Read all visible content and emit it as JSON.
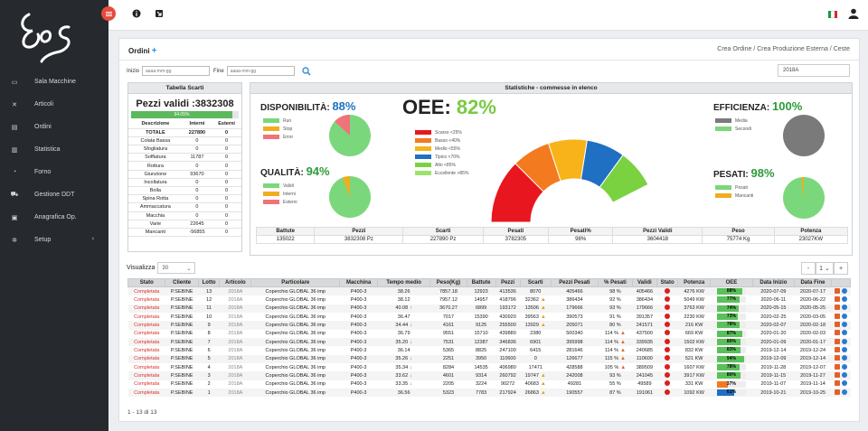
{
  "sidebar": {
    "logo_text": "Eos",
    "items": [
      {
        "label": "Sala Macchine",
        "icon": "monitor-icon"
      },
      {
        "label": "Articoli",
        "icon": "tools-icon"
      },
      {
        "label": "Ordini",
        "icon": "clipboard-icon"
      },
      {
        "label": "Statistica",
        "icon": "chart-icon"
      },
      {
        "label": "Forno",
        "icon": "fire-icon"
      },
      {
        "label": "Gestione DDT",
        "icon": "truck-icon"
      },
      {
        "label": "Anagrafica Op.",
        "icon": "id-card-icon"
      },
      {
        "label": "Setup",
        "icon": "gear-icon"
      }
    ]
  },
  "header": {
    "menu_icon": "hamburger-icon",
    "info_icon": "info-icon",
    "logout_icon": "exit-icon",
    "flag": "italy-flag-icon",
    "user_icon": "user-icon"
  },
  "panel": {
    "title": "Ordini",
    "breadcrumb": [
      "Crea Ordine",
      "Crea Produzione Esterna",
      "Ceste"
    ],
    "filters": {
      "inizio_label": "Inizio",
      "fine_label": "Fine",
      "date_placeholder": "aaaa-mm-gg",
      "year_value": "2018A"
    }
  },
  "scarti": {
    "title": "Tabella Scarti",
    "pezzi_validi": "Pezzi validi :3832308",
    "progress_label": "94.05%",
    "progress": 94.05,
    "headers": [
      "Descrizione",
      "Interni",
      "Esterni"
    ],
    "rows": [
      [
        "TOTALE",
        "227890",
        "0"
      ],
      [
        "Colata Bassa",
        "0",
        "0"
      ],
      [
        "Sfogliatura",
        "0",
        "0"
      ],
      [
        "Soffiatura",
        "11787",
        "0"
      ],
      [
        "Rottura",
        "0",
        "0"
      ],
      [
        "Giunzione",
        "93670",
        "0"
      ],
      [
        "Incollatura",
        "0",
        "0"
      ],
      [
        "Bolla",
        "0",
        "0"
      ],
      [
        "Spina Rotta",
        "0",
        "0"
      ],
      [
        "Ammaccatura",
        "0",
        "0"
      ],
      [
        "Macchia",
        "0",
        "0"
      ],
      [
        "Varie",
        "22645",
        "0"
      ],
      [
        "Mancanti",
        "-56855",
        "0"
      ]
    ]
  },
  "stats": {
    "title": "Statistiche - commesse in elenco",
    "disponibilita": {
      "label": "DISPONIBILITÀ:",
      "value": "88%",
      "legend": [
        "Run",
        "Stop",
        "Error"
      ]
    },
    "qualita": {
      "label": "QUALITÀ:",
      "value": "94%",
      "legend": [
        "Validi",
        "Interni",
        "Esterni"
      ]
    },
    "oee": {
      "label": "OEE:",
      "value": "82%",
      "legend": [
        "Scarso <25%",
        "Basso <40%",
        "Medio <55%",
        "Tipico <70%",
        "Alto <85%",
        "Eccellente >85%"
      ]
    },
    "efficienza": {
      "label": "EFFICIENZA:",
      "value": "100%",
      "legend": [
        "Media",
        "Secondi"
      ]
    },
    "pesati": {
      "label": "PESATI:",
      "value": "98%",
      "legend": [
        "Pesati",
        "Mancanti"
      ]
    },
    "summary_headers": [
      "Battute",
      "Pezzi",
      "Scarti",
      "Pesati",
      "Pesati%",
      "Pezzi Validi",
      "Peso",
      "Potenza"
    ],
    "summary_values": [
      "135022",
      "3832308 Pz",
      "227890 Pz",
      "3782305",
      "98%",
      "3604418",
      "75774 Kg",
      "23027KW"
    ]
  },
  "colors": {
    "green": "#7bd77b",
    "orange": "#f0ad1e",
    "red": "#f0727a",
    "gray": "#7a7a7a",
    "scarso": "#e8161e",
    "basso": "#f37a1f",
    "medio": "#f7b319",
    "tipico": "#1f6fc2",
    "alto": "#7bd241"
  },
  "table": {
    "visualizza_label": "Visualizza",
    "page_size": "30",
    "page": "1",
    "footer": "1 - 13 di 13",
    "headers": [
      "Stato",
      "Cliente",
      "Lotto",
      "Articolo",
      "Particolare",
      "Macchina",
      "Tempo medio",
      "Peso(Kg)",
      "Battute",
      "Pezzi",
      "Scarti",
      "Pezzi Pesati",
      "% Pesati",
      "Validi",
      "Stato",
      "Potenza",
      "OEE",
      "Data Inizio",
      "Data Fine"
    ],
    "rows": [
      {
        "stato": "Completata",
        "cliente": "P.SEBINE",
        "lotto": "13",
        "articolo": "2018A",
        "particolare": "Coperchio GLOBAL 36 imp",
        "macchina": "P400-3",
        "tempo": "38.26",
        "tarrow": "",
        "peso": "7857.18",
        "battute": "12923",
        "pezzi": "413536",
        "scarti": "8070",
        "swarn": false,
        "pesati": "405466",
        "ppct": "98 %",
        "pwarn": false,
        "validi": "405466",
        "potenza": "4276 KW",
        "oee": "88%",
        "oee_value": 88,
        "oee_color": "#5ac15a",
        "inizio": "2020-07-09",
        "fine": "2020-07-17"
      },
      {
        "stato": "Completata",
        "cliente": "P.SEBINE",
        "lotto": "12",
        "articolo": "2018A",
        "particolare": "Coperchio GLOBAL 36 imp",
        "macchina": "P400-3",
        "tempo": "38.12",
        "tarrow": "",
        "peso": "7957.12",
        "battute": "14957",
        "pezzi": "418796",
        "scarti": "32362",
        "swarn": true,
        "pesati": "386434",
        "ppct": "92 %",
        "pwarn": false,
        "validi": "386434",
        "potenza": "5049 KW",
        "oee": "77%",
        "oee_value": 77,
        "oee_color": "#5ac15a",
        "inizio": "2020-06-11",
        "fine": "2020-06-22"
      },
      {
        "stato": "Completata",
        "cliente": "P.SEBINE",
        "lotto": "11",
        "articolo": "2018A",
        "particolare": "Coperchio GLOBAL 36 imp",
        "macchina": "P400-3",
        "tempo": "40.08",
        "tarrow": "up",
        "peso": "3670.27",
        "battute": "6899",
        "pezzi": "193172",
        "scarti": "13506",
        "swarn": true,
        "pesati": "179666",
        "ppct": "93 %",
        "pwarn": false,
        "validi": "179666",
        "potenza": "3763 KW",
        "oee": "74%",
        "oee_value": 74,
        "oee_color": "#5ac15a",
        "inizio": "2020-05-15",
        "fine": "2020-05-25"
      },
      {
        "stato": "Completata",
        "cliente": "P.SEBINE",
        "lotto": "10",
        "articolo": "2018A",
        "particolare": "Coperchio GLOBAL 36 imp",
        "macchina": "P400-3",
        "tempo": "36.47",
        "tarrow": "",
        "peso": "7017",
        "battute": "15390",
        "pezzi": "430920",
        "scarti": "39563",
        "swarn": true,
        "pesati": "390573",
        "ppct": "91 %",
        "pwarn": false,
        "validi": "391357",
        "potenza": "2230 KW",
        "oee": "73%",
        "oee_value": 73,
        "oee_color": "#5ac15a",
        "inizio": "2020-02-25",
        "fine": "2020-03-05"
      },
      {
        "stato": "Completata",
        "cliente": "P.SEBINE",
        "lotto": "9",
        "articolo": "2018A",
        "particolare": "Coperchio GLOBAL 36 imp",
        "macchina": "P400-3",
        "tempo": "34.44",
        "tarrow": "down",
        "peso": "4161",
        "battute": "9125",
        "pezzi": "255500",
        "scarti": "13929",
        "swarn": true,
        "pesati": "205071",
        "ppct": "80 %",
        "pwarn": false,
        "validi": "241571",
        "potenza": "216 KW",
        "oee": "78%",
        "oee_value": 78,
        "oee_color": "#5ac15a",
        "inizio": "2020-02-07",
        "fine": "2020-02-18"
      },
      {
        "stato": "Completata",
        "cliente": "P.SEBINE",
        "lotto": "8",
        "articolo": "2018A",
        "particolare": "Coperchio GLOBAL 36 imp",
        "macchina": "P400-3",
        "tempo": "36.79",
        "tarrow": "",
        "peso": "9551",
        "battute": "15710",
        "pezzi": "439880",
        "scarti": "2380",
        "swarn": false,
        "pesati": "500340",
        "ppct": "114 %",
        "pwarn": true,
        "validi": "437500",
        "potenza": "669 KW",
        "oee": "87%",
        "oee_value": 87,
        "oee_color": "#5ac15a",
        "inizio": "2020-01-20",
        "fine": "2020-02-03"
      },
      {
        "stato": "Completata",
        "cliente": "P.SEBINE",
        "lotto": "7",
        "articolo": "2018A",
        "particolare": "Coperchio GLOBAL 36 imp",
        "macchina": "P400-3",
        "tempo": "35.20",
        "tarrow": "down",
        "peso": "7531",
        "battute": "12387",
        "pezzi": "346836",
        "scarti": "6901",
        "swarn": false,
        "pesati": "395998",
        "ppct": "114 %",
        "pwarn": true,
        "validi": "339935",
        "potenza": "1502 KW",
        "oee": "80%",
        "oee_value": 80,
        "oee_color": "#5ac15a",
        "inizio": "2020-01-09",
        "fine": "2020-01-17"
      },
      {
        "stato": "Completata",
        "cliente": "P.SEBINE",
        "lotto": "6",
        "articolo": "2018A",
        "particolare": "Coperchio GLOBAL 36 imp",
        "macchina": "P400-3",
        "tempo": "36.14",
        "tarrow": "",
        "peso": "5365",
        "battute": "8825",
        "pezzi": "247100",
        "scarti": "6415",
        "swarn": false,
        "pesati": "281646",
        "ppct": "114 %",
        "pwarn": true,
        "validi": "240685",
        "potenza": "832 KW",
        "oee": "83%",
        "oee_value": 83,
        "oee_color": "#5ac15a",
        "inizio": "2019-12-14",
        "fine": "2019-12-24"
      },
      {
        "stato": "Completata",
        "cliente": "P.SEBINE",
        "lotto": "5",
        "articolo": "2018A",
        "particolare": "Coperchio GLOBAL 36 imp",
        "macchina": "P400-3",
        "tempo": "35.26",
        "tarrow": "down",
        "peso": "2251",
        "battute": "3950",
        "pezzi": "110600",
        "scarti": "0",
        "swarn": false,
        "pesati": "126677",
        "ppct": "115 %",
        "pwarn": true,
        "validi": "110600",
        "potenza": "521 KW",
        "oee": "94%",
        "oee_value": 94,
        "oee_color": "#5ac15a",
        "inizio": "2019-12-09",
        "fine": "2019-12-14"
      },
      {
        "stato": "Completata",
        "cliente": "P.SEBINE",
        "lotto": "4",
        "articolo": "2018A",
        "particolare": "Coperchio GLOBAL 36 imp",
        "macchina": "P400-3",
        "tempo": "35.34",
        "tarrow": "down",
        "peso": "8284",
        "battute": "14535",
        "pezzi": "406980",
        "scarti": "17471",
        "swarn": false,
        "pesati": "428588",
        "ppct": "105 %",
        "pwarn": true,
        "validi": "389509",
        "potenza": "1607 KW",
        "oee": "78%",
        "oee_value": 78,
        "oee_color": "#5ac15a",
        "inizio": "2019-11-28",
        "fine": "2019-12-07"
      },
      {
        "stato": "Completata",
        "cliente": "P.SEBINE",
        "lotto": "3",
        "articolo": "2018A",
        "particolare": "Coperchio GLOBAL 36 imp",
        "macchina": "P400-3",
        "tempo": "33.62",
        "tarrow": "down",
        "peso": "4601",
        "battute": "9314",
        "pezzi": "260792",
        "scarti": "19747",
        "swarn": true,
        "pesati": "242008",
        "ppct": "93 %",
        "pwarn": false,
        "validi": "241045",
        "potenza": "3917 KW",
        "oee": "80%",
        "oee_value": 80,
        "oee_color": "#5ac15a",
        "inizio": "2019-11-15",
        "fine": "2019-11-27"
      },
      {
        "stato": "Completata",
        "cliente": "P.SEBINE",
        "lotto": "2",
        "articolo": "2018A",
        "particolare": "Coperchio GLOBAL 36 imp",
        "macchina": "P400-3",
        "tempo": "33.35",
        "tarrow": "down",
        "peso": "2205",
        "battute": "3224",
        "pezzi": "90272",
        "scarti": "40683",
        "swarn": true,
        "pesati": "49281",
        "ppct": "55 %",
        "pwarn": false,
        "validi": "49589",
        "potenza": "331 KW",
        "oee": "37%",
        "oee_value": 37,
        "oee_color": "#f37a1f",
        "inizio": "2019-11-07",
        "fine": "2019-11-14"
      },
      {
        "stato": "Completata",
        "cliente": "P.SEBINE",
        "lotto": "1",
        "articolo": "2018A",
        "particolare": "Coperchio GLOBAL 36 imp",
        "macchina": "P400-3",
        "tempo": "36.56",
        "tarrow": "",
        "peso": "5323",
        "battute": "7783",
        "pezzi": "217924",
        "scarti": "26863",
        "swarn": true,
        "pesati": "190557",
        "ppct": "87 %",
        "pwarn": false,
        "validi": "191061",
        "potenza": "1092 KW",
        "oee": "61%",
        "oee_value": 61,
        "oee_color": "#1f6fc2",
        "inizio": "2019-10-21",
        "fine": "2019-10-25"
      }
    ]
  }
}
